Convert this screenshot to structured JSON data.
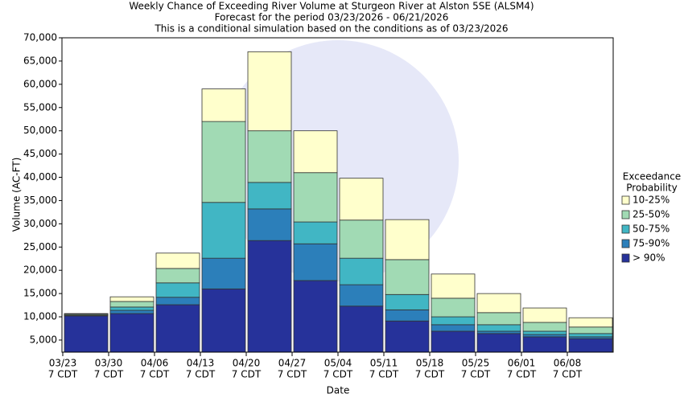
{
  "chart_data": {
    "type": "stacked_bar",
    "title": [
      "Weekly Chance of Exceeding River Volume at Sturgeon River at Alston 5SE (ALSM4)",
      "Forecast for the period 03/23/2026 - 06/21/2026",
      "This is a conditional simulation based on the conditions as of 03/23/2026"
    ],
    "x_label": "Date",
    "y_label": "Volume (AC-FT)",
    "categories": [
      "03/23",
      "03/30",
      "04/06",
      "04/13",
      "04/20",
      "04/27",
      "05/04",
      "05/11",
      "05/18",
      "05/25",
      "06/01",
      "06/08"
    ],
    "x_tick_sublabels": [
      "7 CDT",
      "7 CDT",
      "7 CDT",
      "7 CDT",
      "7 CDT",
      "7 CDT",
      "7 CDT",
      "7 CDT",
      "7 CDT",
      "7 CDT",
      "7 CDT",
      "7 CDT"
    ],
    "legend_title": [
      "Exceedance",
      "Probability"
    ],
    "legend_position": "right",
    "series": [
      {
        "name": "> 90%",
        "color": "#26329a",
        "values": [
          10200,
          10700,
          12600,
          16000,
          26400,
          17800,
          12300,
          9100,
          6900,
          6400,
          5700,
          5300
        ]
      },
      {
        "name": "75-90%",
        "color": "#2c7fba",
        "values": [
          100,
          700,
          1600,
          6600,
          6800,
          7900,
          4600,
          2400,
          1400,
          500,
          500,
          400
        ]
      },
      {
        "name": "50-75%",
        "color": "#41b6c4",
        "values": [
          100,
          700,
          3100,
          12000,
          5700,
          4700,
          5700,
          3300,
          1700,
          1400,
          700,
          700
        ]
      },
      {
        "name": "25-50%",
        "color": "#a1dab4",
        "values": [
          200,
          1200,
          3100,
          17400,
          11100,
          10600,
          8200,
          7500,
          4000,
          2600,
          1900,
          1400
        ]
      },
      {
        "name": "10-25%",
        "color": "#ffffcc",
        "values": [
          100,
          1000,
          3300,
          7000,
          17000,
          9000,
          9000,
          8600,
          5200,
          4100,
          3100,
          2000
        ]
      }
    ],
    "ylim": [
      2400,
      70000
    ],
    "yticks": [
      {
        "value": 5000,
        "label": "5,000"
      },
      {
        "value": 10000,
        "label": "10,000"
      },
      {
        "value": 15000,
        "label": "15,000"
      },
      {
        "value": 20000,
        "label": "20,000"
      },
      {
        "value": 25000,
        "label": "25,000"
      },
      {
        "value": 30000,
        "label": "30,000"
      },
      {
        "value": 35000,
        "label": "35,000"
      },
      {
        "value": 40000,
        "label": "40,000"
      },
      {
        "value": 45000,
        "label": "45,000"
      },
      {
        "value": 50000,
        "label": "50,000"
      },
      {
        "value": 55000,
        "label": "55,000"
      },
      {
        "value": 60000,
        "label": "60,000"
      },
      {
        "value": 65000,
        "label": "65,000"
      },
      {
        "value": 70000,
        "label": "70,000"
      }
    ],
    "grid": false
  }
}
